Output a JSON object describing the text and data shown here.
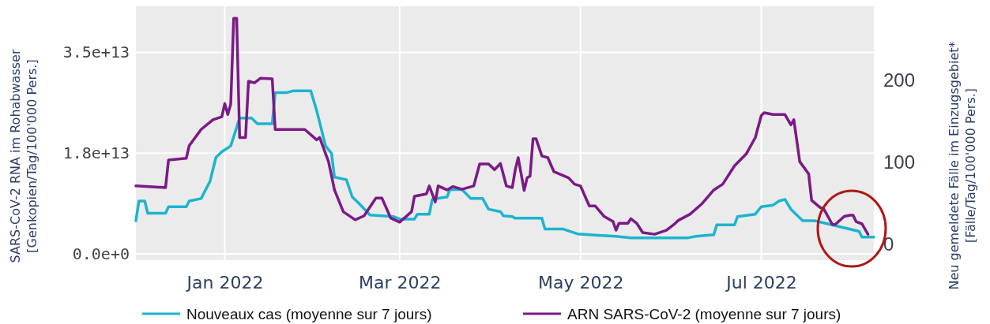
{
  "chart_data": {
    "type": "line",
    "xlabel": null,
    "ylabel": "SARS-CoV-2 RNA im Rohabwasser\n[Genkopien/Tag/100'000 Pers.]",
    "y2label": "Neu gemeldete Fälle im Einzugsgebiet*\n[Fälle/Tag/100'000 Pers.]",
    "xlim": [
      "2021-12-02",
      "2022-08-08"
    ],
    "xticks": [
      {
        "value": "2022-01-01",
        "label": "Jan 2022"
      },
      {
        "value": "2022-03-01",
        "label": "Mar 2022"
      },
      {
        "value": "2022-05-01",
        "label": "May 2022"
      },
      {
        "value": "2022-07-01",
        "label": "Jul 2022"
      }
    ],
    "ylim": [
      -1100000000000.0,
      43000000000000.0
    ],
    "yticks": [
      {
        "value": 0,
        "label": "0.0e+0"
      },
      {
        "value": 17500000000000.0,
        "label": "1.8e+13"
      },
      {
        "value": 35000000000000.0,
        "label": "3.5e+13"
      }
    ],
    "y2lim": [
      -19,
      290
    ],
    "y2ticks": [
      0,
      100,
      200
    ],
    "grid": true,
    "legend": "bottom",
    "line_style": "solid",
    "marker": "none",
    "series": [
      {
        "name": "Nouveaux cas (moyenne sur 7 jours)",
        "color": "#1cb4cf",
        "axis": "y2",
        "x": [
          "2021-12-02",
          "2021-12-03",
          "2021-12-05",
          "2021-12-06",
          "2021-12-12",
          "2021-12-13",
          "2021-12-19",
          "2021-12-20",
          "2021-12-24",
          "2021-12-27",
          "2021-12-29",
          "2021-12-31",
          "2022-01-03",
          "2022-01-06",
          "2022-01-10",
          "2022-01-12",
          "2022-01-17",
          "2022-01-18",
          "2022-01-22",
          "2022-01-24",
          "2022-01-30",
          "2022-02-01",
          "2022-02-04",
          "2022-02-06",
          "2022-02-07",
          "2022-02-11",
          "2022-02-13",
          "2022-02-15",
          "2022-02-19",
          "2022-02-27",
          "2022-03-01",
          "2022-03-06",
          "2022-03-07",
          "2022-03-11",
          "2022-03-12",
          "2022-03-17",
          "2022-03-18",
          "2022-03-22",
          "2022-03-25",
          "2022-03-29",
          "2022-03-31",
          "2022-04-04",
          "2022-04-05",
          "2022-04-08",
          "2022-04-09",
          "2022-04-18",
          "2022-04-19",
          "2022-04-25",
          "2022-04-30",
          "2022-05-08",
          "2022-05-13",
          "2022-05-18",
          "2022-06-06",
          "2022-06-09",
          "2022-06-15",
          "2022-06-16",
          "2022-06-22",
          "2022-06-23",
          "2022-06-29",
          "2022-07-01",
          "2022-07-05",
          "2022-07-07",
          "2022-07-09",
          "2022-07-11",
          "2022-07-15",
          "2022-07-19",
          "2022-07-26",
          "2022-08-03",
          "2022-08-04",
          "2022-08-08"
        ],
        "values": [
          29,
          53,
          53,
          38,
          38,
          46,
          46,
          53,
          56,
          77,
          106,
          113,
          120,
          154,
          154,
          147,
          147,
          185,
          185,
          187,
          187,
          163,
          120,
          111,
          82,
          79,
          58,
          51,
          36,
          34,
          31,
          31,
          37,
          37,
          55,
          58,
          67,
          67,
          56,
          56,
          43,
          40,
          35,
          34,
          32,
          32,
          19,
          19,
          13,
          11,
          10,
          8,
          8,
          10,
          12,
          24,
          24,
          34,
          37,
          46,
          48,
          53,
          55,
          43,
          29,
          29,
          23,
          16,
          9,
          9
        ]
      },
      {
        "name": "ARN SARS-CoV-2 (moyenne sur 7 jours)",
        "color": "#7b1a86",
        "x": [
          "2021-12-02",
          "2021-12-12",
          "2021-12-13",
          "2021-12-19",
          "2021-12-20",
          "2021-12-24",
          "2021-12-28",
          "2021-12-31",
          "2022-01-01",
          "2022-01-02",
          "2022-01-03",
          "2022-01-04",
          "2022-01-05",
          "2022-01-06",
          "2022-01-08",
          "2022-01-09",
          "2022-01-11",
          "2022-01-13",
          "2022-01-17",
          "2022-01-18",
          "2022-01-28",
          "2022-02-01",
          "2022-02-02",
          "2022-02-05",
          "2022-02-07",
          "2022-02-10",
          "2022-02-14",
          "2022-02-17",
          "2022-02-21",
          "2022-02-23",
          "2022-02-26",
          "2022-03-01",
          "2022-03-05",
          "2022-03-06",
          "2022-03-10",
          "2022-03-11",
          "2022-03-13",
          "2022-03-14",
          "2022-03-17",
          "2022-03-19",
          "2022-03-22",
          "2022-03-26",
          "2022-03-28",
          "2022-03-31",
          "2022-04-02",
          "2022-04-04",
          "2022-04-06",
          "2022-04-08",
          "2022-04-09",
          "2022-04-10",
          "2022-04-12",
          "2022-04-13",
          "2022-04-14",
          "2022-04-15",
          "2022-04-16",
          "2022-04-18",
          "2022-04-20",
          "2022-04-22",
          "2022-04-27",
          "2022-04-29",
          "2022-05-01",
          "2022-05-04",
          "2022-05-06",
          "2022-05-09",
          "2022-05-12",
          "2022-05-13",
          "2022-05-14",
          "2022-05-17",
          "2022-05-18",
          "2022-05-20",
          "2022-05-22",
          "2022-05-26",
          "2022-05-30",
          "2022-06-02",
          "2022-06-03",
          "2022-06-07",
          "2022-06-11",
          "2022-06-15",
          "2022-06-18",
          "2022-06-22",
          "2022-06-26",
          "2022-06-29",
          "2022-07-01",
          "2022-07-02",
          "2022-07-05",
          "2022-07-09",
          "2022-07-11",
          "2022-07-12",
          "2022-07-14",
          "2022-07-17",
          "2022-07-18",
          "2022-07-21",
          "2022-07-22",
          "2022-07-25",
          "2022-07-26",
          "2022-07-29",
          "2022-07-31",
          "2022-08-01",
          "2022-08-02",
          "2022-08-04",
          "2022-08-06"
        ],
        "values": [
          11800000000000.0,
          11500000000000.0,
          16300000000000.0,
          16600000000000.0,
          18800000000000.0,
          21600000000000.0,
          23300000000000.0,
          23800000000000.0,
          26100000000000.0,
          24200000000000.0,
          26000000000000.0,
          40900000000000.0,
          40900000000000.0,
          20200000000000.0,
          20200000000000.0,
          30000000000000.0,
          29700000000000.0,
          30500000000000.0,
          30400000000000.0,
          21600000000000.0,
          21600000000000.0,
          19800000000000.0,
          20200000000000.0,
          16000000000000.0,
          11100000000000.0,
          7300000000000.0,
          5900000000000.0,
          6600000000000.0,
          9700000000000.0,
          9700000000000.0,
          6200000000000.0,
          5500000000000.0,
          7300000000000.0,
          10000000000000.0,
          10400000000000.0,
          11800000000000.0,
          9000000000000.0,
          11800000000000.0,
          11100000000000.0,
          11700000000000.0,
          11200000000000.0,
          11800000000000.0,
          15600000000000.0,
          15600000000000.0,
          14600000000000.0,
          15700000000000.0,
          11800000000000.0,
          11500000000000.0,
          14600000000000.0,
          16700000000000.0,
          11000000000000.0,
          13200000000000.0,
          13500000000000.0,
          20000000000000.0,
          20000000000000.0,
          17000000000000.0,
          16700000000000.0,
          14300000000000.0,
          13200000000000.0,
          12100000000000.0,
          11800000000000.0,
          8300000000000.0,
          8300000000000.0,
          6500000000000.0,
          5600000000000.0,
          4100000000000.0,
          5300000000000.0,
          5300000000000.0,
          6100000000000.0,
          5300000000000.0,
          3700000000000.0,
          3400000000000.0,
          4100000000000.0,
          5300000000000.0,
          5800000000000.0,
          6900000000000.0,
          8700000000000.0,
          11100000000000.0,
          12100000000000.0,
          15300000000000.0,
          17400000000000.0,
          20200000000000.0,
          24000000000000.0,
          24500000000000.0,
          24200000000000.0,
          24200000000000.0,
          22400000000000.0,
          23300000000000.0,
          16000000000000.0,
          13900000000000.0,
          9300000000000.0,
          8000000000000.0,
          7900000000000.0,
          5100000000000.0,
          5100000000000.0,
          6500000000000.0,
          6700000000000.0,
          6700000000000.0,
          5600000000000.0,
          5200000000000.0,
          3400000000000.0
        ]
      }
    ]
  }
}
